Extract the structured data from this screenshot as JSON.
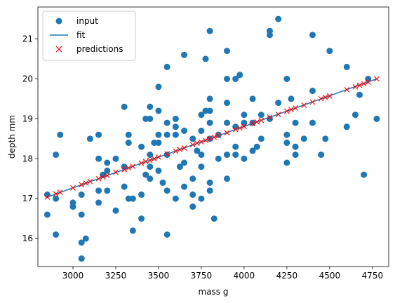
{
  "chart_data": {
    "type": "scatter",
    "xlabel": "mass g",
    "ylabel": "depth mm",
    "xlim": [
      2795,
      4845
    ],
    "ylim": [
      15.3,
      21.8
    ],
    "xticks": [
      3000,
      3250,
      3500,
      3750,
      4000,
      4250,
      4500,
      4750
    ],
    "yticks": [
      16,
      17,
      18,
      19,
      20,
      21
    ],
    "grid": false,
    "legend_position": "top-left",
    "colors": {
      "input": "#1f77b4",
      "fit": "#1f77b4",
      "predictions": "#ff0000"
    },
    "series": [
      {
        "name": "input",
        "kind": "scatter",
        "points": [
          [
            2850,
            17.1
          ],
          [
            2850,
            16.6
          ],
          [
            2900,
            18.1
          ],
          [
            2900,
            17.0
          ],
          [
            2900,
            16.1
          ],
          [
            2925,
            18.6
          ],
          [
            3000,
            16.9
          ],
          [
            3000,
            16.8
          ],
          [
            3050,
            17.1
          ],
          [
            3050,
            16.6
          ],
          [
            3050,
            15.9
          ],
          [
            3050,
            15.5
          ],
          [
            3075,
            16.0
          ],
          [
            3100,
            18.5
          ],
          [
            3150,
            18.6
          ],
          [
            3150,
            18.0
          ],
          [
            3150,
            17.2
          ],
          [
            3150,
            16.9
          ],
          [
            3175,
            17.6
          ],
          [
            3200,
            17.9
          ],
          [
            3200,
            17.7
          ],
          [
            3200,
            17.2
          ],
          [
            3250,
            18.0
          ],
          [
            3250,
            16.7
          ],
          [
            3300,
            19.3
          ],
          [
            3300,
            17.8
          ],
          [
            3300,
            17.3
          ],
          [
            3325,
            18.6
          ],
          [
            3325,
            18.4
          ],
          [
            3325,
            17.0
          ],
          [
            3350,
            17.0
          ],
          [
            3350,
            16.2
          ],
          [
            3400,
            18.3
          ],
          [
            3400,
            17.1
          ],
          [
            3400,
            16.5
          ],
          [
            3425,
            19.0
          ],
          [
            3425,
            17.6
          ],
          [
            3450,
            19.3
          ],
          [
            3450,
            19.0
          ],
          [
            3450,
            18.1
          ],
          [
            3450,
            17.8
          ],
          [
            3450,
            17.5
          ],
          [
            3475,
            18.4
          ],
          [
            3500,
            19.8
          ],
          [
            3500,
            19.2
          ],
          [
            3500,
            18.6
          ],
          [
            3500,
            18.4
          ],
          [
            3500,
            17.7
          ],
          [
            3525,
            17.4
          ],
          [
            3550,
            20.3
          ],
          [
            3550,
            18.9
          ],
          [
            3550,
            18.6
          ],
          [
            3550,
            18.1
          ],
          [
            3550,
            17.2
          ],
          [
            3550,
            16.1
          ],
          [
            3600,
            19.0
          ],
          [
            3600,
            18.8
          ],
          [
            3600,
            18.6
          ],
          [
            3600,
            17.0
          ],
          [
            3625,
            17.8
          ],
          [
            3650,
            20.6
          ],
          [
            3650,
            18.7
          ],
          [
            3650,
            17.9
          ],
          [
            3650,
            17.3
          ],
          [
            3700,
            18.5
          ],
          [
            3700,
            17.5
          ],
          [
            3700,
            17.1
          ],
          [
            3700,
            16.8
          ],
          [
            3725,
            18.2
          ],
          [
            3750,
            19.1
          ],
          [
            3750,
            18.7
          ],
          [
            3750,
            18.1
          ],
          [
            3750,
            17.8
          ],
          [
            3750,
            17.0
          ],
          [
            3775,
            20.5
          ],
          [
            3775,
            19.2
          ],
          [
            3800,
            21.2
          ],
          [
            3800,
            19.5
          ],
          [
            3800,
            19.2
          ],
          [
            3800,
            18.9
          ],
          [
            3800,
            18.5
          ],
          [
            3800,
            17.4
          ],
          [
            3800,
            17.2
          ],
          [
            3825,
            16.5
          ],
          [
            3850,
            18.6
          ],
          [
            3850,
            18.0
          ],
          [
            3900,
            20.7
          ],
          [
            3900,
            20.0
          ],
          [
            3900,
            19.4
          ],
          [
            3900,
            18.9
          ],
          [
            3900,
            18.1
          ],
          [
            3900,
            17.5
          ],
          [
            3950,
            20.0
          ],
          [
            3950,
            18.8
          ],
          [
            3950,
            18.3
          ],
          [
            3950,
            18.1
          ],
          [
            3975,
            20.1
          ],
          [
            4000,
            19.1
          ],
          [
            4000,
            18.9
          ],
          [
            4000,
            18.0
          ],
          [
            4050,
            19.5
          ],
          [
            4050,
            18.9
          ],
          [
            4050,
            18.2
          ],
          [
            4075,
            18.3
          ],
          [
            4100,
            19.1
          ],
          [
            4100,
            18.5
          ],
          [
            4150,
            21.2
          ],
          [
            4150,
            21.1
          ],
          [
            4150,
            19.0
          ],
          [
            4200,
            21.5
          ],
          [
            4200,
            19.4
          ],
          [
            4250,
            20.0
          ],
          [
            4250,
            18.6
          ],
          [
            4250,
            18.4
          ],
          [
            4250,
            17.9
          ],
          [
            4275,
            19.5
          ],
          [
            4300,
            18.9
          ],
          [
            4300,
            18.3
          ],
          [
            4300,
            18.1
          ],
          [
            4350,
            18.5
          ],
          [
            4400,
            21.1
          ],
          [
            4400,
            19.7
          ],
          [
            4400,
            18.9
          ],
          [
            4450,
            18.1
          ],
          [
            4475,
            18.5
          ],
          [
            4500,
            20.7
          ],
          [
            4600,
            20.3
          ],
          [
            4600,
            18.8
          ],
          [
            4650,
            19.1
          ],
          [
            4675,
            19.6
          ],
          [
            4700,
            17.6
          ],
          [
            4725,
            20.0
          ],
          [
            4775,
            19.0
          ]
        ]
      },
      {
        "name": "fit",
        "kind": "line",
        "x": [
          2850,
          4775
        ],
        "y": [
          17.04,
          20.0
        ]
      },
      {
        "name": "predictions",
        "kind": "scatter",
        "marker": "x",
        "x": [
          2850,
          2900,
          2925,
          3000,
          3050,
          3075,
          3100,
          3150,
          3175,
          3200,
          3250,
          3300,
          3325,
          3350,
          3400,
          3425,
          3450,
          3475,
          3500,
          3550,
          3600,
          3625,
          3650,
          3700,
          3725,
          3750,
          3775,
          3800,
          3825,
          3850,
          3900,
          3950,
          3975,
          4000,
          4050,
          4075,
          4100,
          4150,
          4200,
          4250,
          4275,
          4300,
          4350,
          4400,
          4450,
          4475,
          4500,
          4600,
          4650,
          4675,
          4700,
          4725,
          4775
        ],
        "y": [
          17.04,
          17.12,
          17.16,
          17.27,
          17.35,
          17.39,
          17.43,
          17.5,
          17.54,
          17.58,
          17.66,
          17.73,
          17.77,
          17.81,
          17.89,
          17.93,
          17.96,
          18.0,
          18.04,
          18.12,
          18.19,
          18.23,
          18.27,
          18.35,
          18.39,
          18.42,
          18.46,
          18.5,
          18.54,
          18.58,
          18.65,
          18.73,
          18.77,
          18.81,
          18.88,
          18.92,
          18.96,
          19.04,
          19.11,
          19.19,
          19.23,
          19.27,
          19.34,
          19.42,
          19.5,
          19.54,
          19.57,
          19.73,
          19.8,
          19.84,
          19.88,
          19.92,
          20.0
        ]
      }
    ]
  }
}
